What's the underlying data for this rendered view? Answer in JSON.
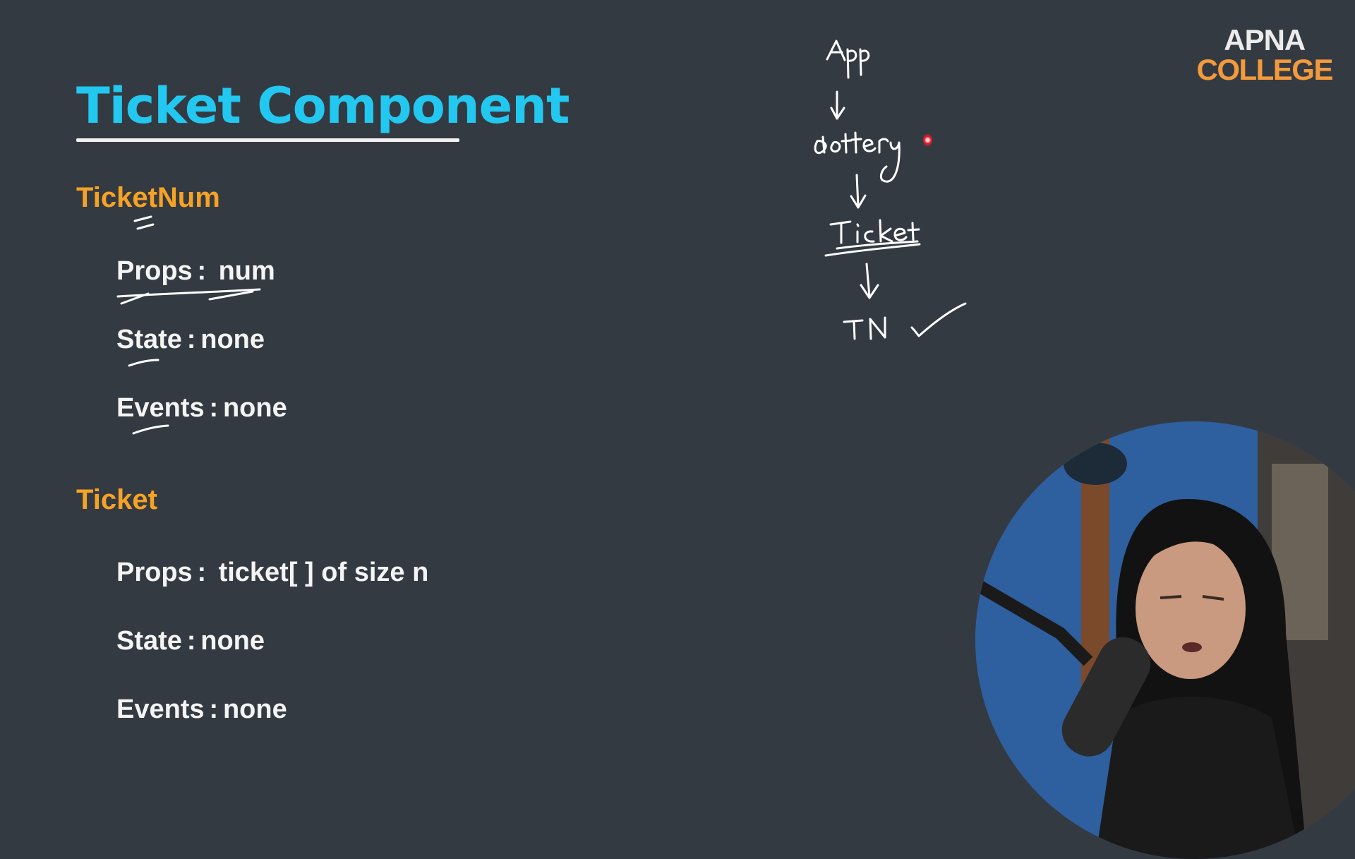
{
  "slide": {
    "title": "Ticket Component",
    "sections": [
      {
        "heading": "TicketNum",
        "rows": [
          {
            "label": "Props",
            "sep": ":",
            "value": " num"
          },
          {
            "label": "State",
            "sep": ":",
            "value": "none"
          },
          {
            "label": "Events",
            "sep": ":",
            "value": "none"
          }
        ]
      },
      {
        "heading": "Ticket",
        "rows": [
          {
            "label": "Props",
            "sep": ":",
            "value": " ticket[ ] of size n"
          },
          {
            "label": "State",
            "sep": ":",
            "value": "none"
          },
          {
            "label": "Events",
            "sep": ":",
            "value": "none"
          }
        ]
      }
    ]
  },
  "logo": {
    "line1": "APNA",
    "line2": "COLLEGE"
  },
  "annotations": {
    "hierarchy": [
      "App",
      "Lottery",
      "Ticket",
      "TN"
    ],
    "check_mark": true
  },
  "colors": {
    "background": "#343a42",
    "title": "#22c8ef",
    "heading": "#f6a325",
    "text": "#f4f4f4",
    "ink": "#ffffff",
    "logo_accent": "#f29a3c"
  },
  "icons": {
    "check": "check-mark-icon",
    "arrow": "arrow-down-icon",
    "pointer": "laser-pointer-icon"
  }
}
